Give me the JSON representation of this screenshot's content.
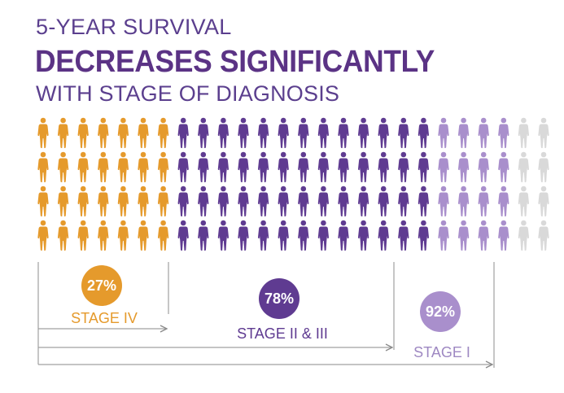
{
  "header": {
    "line1": "5-YEAR SURVIVAL",
    "line2": "DECREASES SIGNIFICANTLY",
    "line3": "WITH STAGE OF DIAGNOSIS"
  },
  "chart_data": {
    "type": "pictograph",
    "rows": 4,
    "columns": 26,
    "groups": [
      {
        "stage": "STAGE IV",
        "survival": "27%",
        "value": 27,
        "color": "#e59a2c"
      },
      {
        "stage": "STAGE II & III",
        "survival": "78%",
        "value": 78,
        "color": "#5f3b91"
      },
      {
        "stage": "STAGE I",
        "survival": "92%",
        "value": 92,
        "color": "#a98fcc"
      }
    ],
    "remainder_color": "#d9d9d9"
  }
}
